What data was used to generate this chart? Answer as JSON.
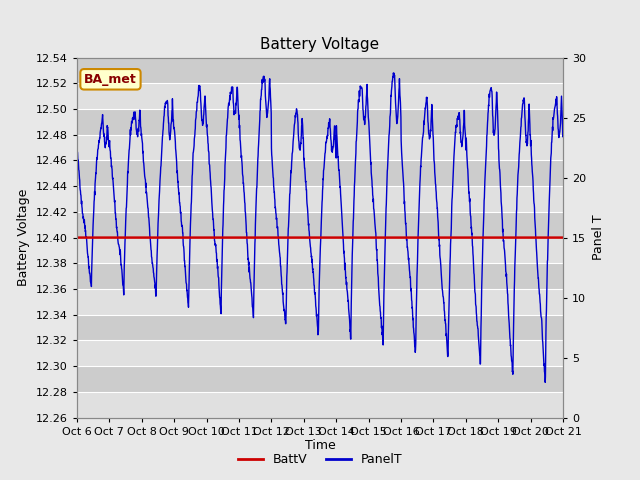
{
  "title": "Battery Voltage",
  "ylabel_left": "Battery Voltage",
  "ylabel_right": "Panel T",
  "xlabel": "Time",
  "ylim_left": [
    12.26,
    12.54
  ],
  "ylim_right": [
    0,
    30
  ],
  "batt_v_value": 12.4,
  "x_ticks": [
    "Oct 6",
    "Oct 7",
    "Oct 8",
    "Oct 9",
    "Oct 10",
    "Oct 11",
    "Oct 12",
    "Oct 13",
    "Oct 14",
    "Oct 15",
    "Oct 16",
    "Oct 17",
    "Oct 18",
    "Oct 19",
    "Oct 20",
    "Oct 21"
  ],
  "background_color": "#e8e8e8",
  "plot_bg_light": "#e0e0e0",
  "plot_bg_dark": "#cccccc",
  "grid_color": "#ffffff",
  "line_blue": "#0000cc",
  "line_red": "#cc0000",
  "legend_battv": "BattV",
  "legend_panelt": "PanelT",
  "annotation_text": "BA_met",
  "annotation_bg": "#ffffcc",
  "annotation_border": "#cc8800",
  "annotation_text_color": "#880000",
  "n_days": 15,
  "n_points": 2000
}
